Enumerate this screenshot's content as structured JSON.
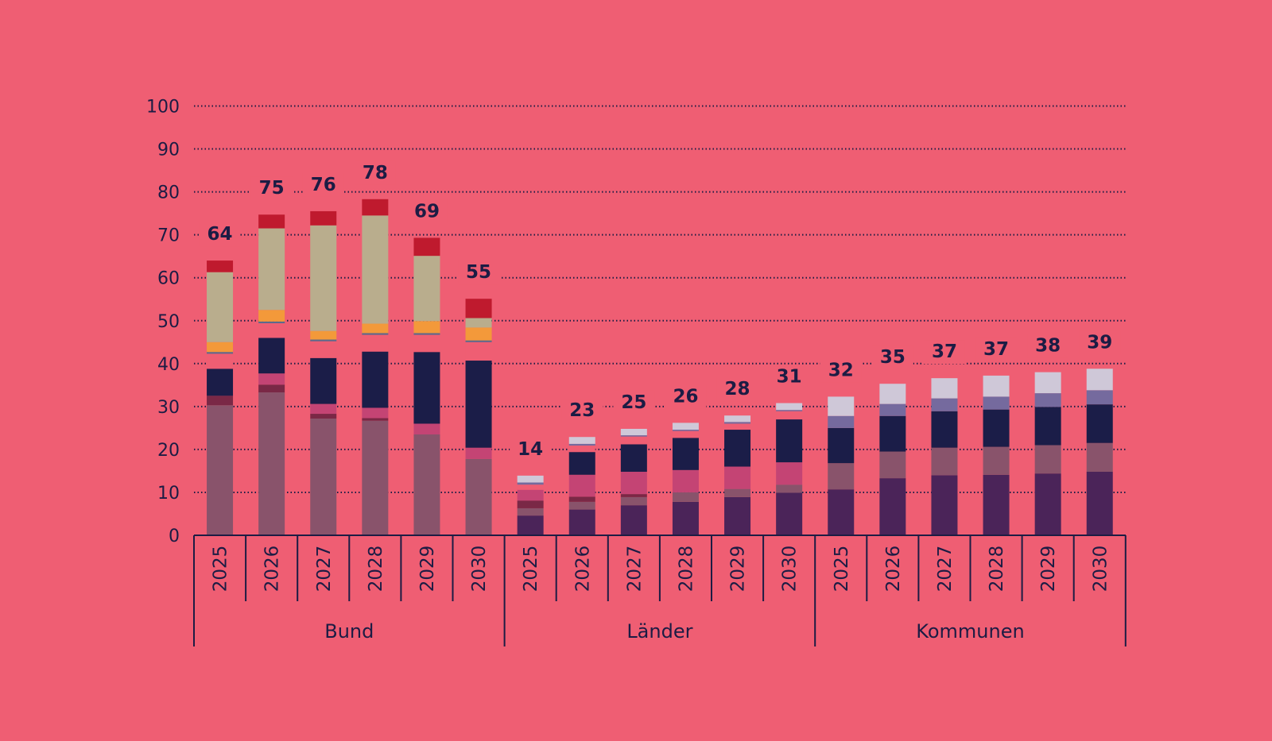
{
  "colors": {
    "background": "#ef5e73",
    "axis": "#1c1c44",
    "grid": "#1c1c44"
  },
  "chart_data": {
    "type": "bar",
    "stacked": true,
    "ylim": [
      0,
      100
    ],
    "yticks": [
      0,
      10,
      20,
      30,
      40,
      50,
      60,
      70,
      80,
      90,
      100
    ],
    "grid": "dotted horizontal",
    "legend": "none",
    "groups": [
      {
        "label": "Bund",
        "bars": [
          {
            "year": "2025",
            "total": "64",
            "segments": [
              {
                "value": 30.3,
                "color": "#89536b"
              },
              {
                "value": 2.2,
                "color": "#7a2846"
              },
              {
                "value": 6.3,
                "color": "#1b1d48"
              },
              {
                "value": 3.5,
                "color": "#ef5e73"
              },
              {
                "value": 0.4,
                "color": "#5b6a8c"
              },
              {
                "value": 2.3,
                "color": "#f3993a"
              },
              {
                "value": 16.3,
                "color": "#b9ad8d"
              },
              {
                "value": 2.7,
                "color": "#bf1a2e"
              }
            ]
          },
          {
            "year": "2026",
            "total": "75",
            "segments": [
              {
                "value": 33.3,
                "color": "#89536b"
              },
              {
                "value": 1.8,
                "color": "#7a2846"
              },
              {
                "value": 2.6,
                "color": "#c44474"
              },
              {
                "value": 8.3,
                "color": "#1b1d48"
              },
              {
                "value": 3.4,
                "color": "#ef5e73"
              },
              {
                "value": 0.4,
                "color": "#5b6a8c"
              },
              {
                "value": 2.7,
                "color": "#f3993a"
              },
              {
                "value": 19.0,
                "color": "#b9ad8d"
              },
              {
                "value": 3.2,
                "color": "#bf1a2e"
              }
            ]
          },
          {
            "year": "2027",
            "total": "76",
            "segments": [
              {
                "value": 27.2,
                "color": "#89536b"
              },
              {
                "value": 1.1,
                "color": "#7a2846"
              },
              {
                "value": 2.3,
                "color": "#c44474"
              },
              {
                "value": 10.7,
                "color": "#1b1d48"
              },
              {
                "value": 3.9,
                "color": "#ef5e73"
              },
              {
                "value": 0.4,
                "color": "#5b6a8c"
              },
              {
                "value": 2.0,
                "color": "#f3993a"
              },
              {
                "value": 24.6,
                "color": "#b9ad8d"
              },
              {
                "value": 3.3,
                "color": "#bf1a2e"
              }
            ]
          },
          {
            "year": "2028",
            "total": "78",
            "segments": [
              {
                "value": 26.7,
                "color": "#89536b"
              },
              {
                "value": 0.6,
                "color": "#7a2846"
              },
              {
                "value": 2.4,
                "color": "#c44474"
              },
              {
                "value": 13.1,
                "color": "#1b1d48"
              },
              {
                "value": 3.9,
                "color": "#ef5e73"
              },
              {
                "value": 0.4,
                "color": "#5b6a8c"
              },
              {
                "value": 2.2,
                "color": "#f3993a"
              },
              {
                "value": 25.2,
                "color": "#b9ad8d"
              },
              {
                "value": 3.8,
                "color": "#bf1a2e"
              }
            ]
          },
          {
            "year": "2029",
            "total": "69",
            "segments": [
              {
                "value": 23.5,
                "color": "#89536b"
              },
              {
                "value": 2.5,
                "color": "#c44474"
              },
              {
                "value": 16.7,
                "color": "#1b1d48"
              },
              {
                "value": 4.0,
                "color": "#ef5e73"
              },
              {
                "value": 0.4,
                "color": "#5b6a8c"
              },
              {
                "value": 2.8,
                "color": "#f3993a"
              },
              {
                "value": 15.2,
                "color": "#b9ad8d"
              },
              {
                "value": 4.2,
                "color": "#bf1a2e"
              }
            ]
          },
          {
            "year": "2030",
            "total": "55",
            "segments": [
              {
                "value": 17.8,
                "color": "#89536b"
              },
              {
                "value": 2.6,
                "color": "#c44474"
              },
              {
                "value": 20.3,
                "color": "#1b1d48"
              },
              {
                "value": 4.3,
                "color": "#ef5e73"
              },
              {
                "value": 0.4,
                "color": "#5b6a8c"
              },
              {
                "value": 3.0,
                "color": "#f3993a"
              },
              {
                "value": 2.2,
                "color": "#b9ad8d"
              },
              {
                "value": 4.5,
                "color": "#bf1a2e"
              }
            ]
          }
        ]
      },
      {
        "label": "Länder",
        "bars": [
          {
            "year": "2025",
            "total": "14",
            "segments": [
              {
                "value": 4.6,
                "color": "#4b2459"
              },
              {
                "value": 1.7,
                "color": "#89536b"
              },
              {
                "value": 1.8,
                "color": "#7a2846"
              },
              {
                "value": 2.5,
                "color": "#c44474"
              },
              {
                "value": 1.2,
                "color": "#ef5e73"
              },
              {
                "value": 0.5,
                "color": "#756a9e"
              },
              {
                "value": 1.6,
                "color": "#cfc8d8"
              }
            ]
          },
          {
            "year": "2026",
            "total": "23",
            "segments": [
              {
                "value": 6.0,
                "color": "#4b2459"
              },
              {
                "value": 1.8,
                "color": "#89536b"
              },
              {
                "value": 1.2,
                "color": "#7a2846"
              },
              {
                "value": 5.1,
                "color": "#c44474"
              },
              {
                "value": 5.3,
                "color": "#1b1d48"
              },
              {
                "value": 1.5,
                "color": "#ef5e73"
              },
              {
                "value": 0.4,
                "color": "#756a9e"
              },
              {
                "value": 1.6,
                "color": "#cfc8d8"
              }
            ]
          },
          {
            "year": "2027",
            "total": "25",
            "segments": [
              {
                "value": 7.0,
                "color": "#4b2459"
              },
              {
                "value": 1.9,
                "color": "#89536b"
              },
              {
                "value": 0.7,
                "color": "#7a2846"
              },
              {
                "value": 5.2,
                "color": "#c44474"
              },
              {
                "value": 6.4,
                "color": "#1b1d48"
              },
              {
                "value": 1.8,
                "color": "#ef5e73"
              },
              {
                "value": 0.3,
                "color": "#756a9e"
              },
              {
                "value": 1.5,
                "color": "#cfc8d8"
              }
            ]
          },
          {
            "year": "2028",
            "total": "26",
            "segments": [
              {
                "value": 7.8,
                "color": "#4b2459"
              },
              {
                "value": 2.2,
                "color": "#89536b"
              },
              {
                "value": 5.2,
                "color": "#c44474"
              },
              {
                "value": 7.5,
                "color": "#1b1d48"
              },
              {
                "value": 1.6,
                "color": "#ef5e73"
              },
              {
                "value": 0.3,
                "color": "#756a9e"
              },
              {
                "value": 1.6,
                "color": "#cfc8d8"
              }
            ]
          },
          {
            "year": "2029",
            "total": "28",
            "segments": [
              {
                "value": 8.9,
                "color": "#4b2459"
              },
              {
                "value": 1.9,
                "color": "#89536b"
              },
              {
                "value": 5.2,
                "color": "#c44474"
              },
              {
                "value": 8.6,
                "color": "#1b1d48"
              },
              {
                "value": 1.4,
                "color": "#ef5e73"
              },
              {
                "value": 0.4,
                "color": "#756a9e"
              },
              {
                "value": 1.5,
                "color": "#cfc8d8"
              }
            ]
          },
          {
            "year": "2030",
            "total": "31",
            "segments": [
              {
                "value": 9.9,
                "color": "#4b2459"
              },
              {
                "value": 1.9,
                "color": "#89536b"
              },
              {
                "value": 5.2,
                "color": "#c44474"
              },
              {
                "value": 10.0,
                "color": "#1b1d48"
              },
              {
                "value": 1.9,
                "color": "#ef5e73"
              },
              {
                "value": 0.3,
                "color": "#756a9e"
              },
              {
                "value": 1.6,
                "color": "#cfc8d8"
              }
            ]
          }
        ]
      },
      {
        "label": "Kommunen",
        "bars": [
          {
            "year": "2025",
            "total": "32",
            "segments": [
              {
                "value": 10.7,
                "color": "#4b2459"
              },
              {
                "value": 6.1,
                "color": "#89536b"
              },
              {
                "value": 8.2,
                "color": "#1b1d48"
              },
              {
                "value": 2.8,
                "color": "#756a9e"
              },
              {
                "value": 4.5,
                "color": "#cfc8d8"
              }
            ]
          },
          {
            "year": "2026",
            "total": "35",
            "segments": [
              {
                "value": 13.3,
                "color": "#4b2459"
              },
              {
                "value": 6.2,
                "color": "#89536b"
              },
              {
                "value": 8.3,
                "color": "#1b1d48"
              },
              {
                "value": 2.8,
                "color": "#756a9e"
              },
              {
                "value": 4.7,
                "color": "#cfc8d8"
              }
            ]
          },
          {
            "year": "2027",
            "total": "37",
            "segments": [
              {
                "value": 14.0,
                "color": "#4b2459"
              },
              {
                "value": 6.4,
                "color": "#89536b"
              },
              {
                "value": 8.5,
                "color": "#1b1d48"
              },
              {
                "value": 3.0,
                "color": "#756a9e"
              },
              {
                "value": 4.7,
                "color": "#cfc8d8"
              }
            ]
          },
          {
            "year": "2028",
            "total": "37",
            "segments": [
              {
                "value": 14.1,
                "color": "#4b2459"
              },
              {
                "value": 6.5,
                "color": "#89536b"
              },
              {
                "value": 8.7,
                "color": "#1b1d48"
              },
              {
                "value": 3.0,
                "color": "#756a9e"
              },
              {
                "value": 4.9,
                "color": "#cfc8d8"
              }
            ]
          },
          {
            "year": "2029",
            "total": "38",
            "segments": [
              {
                "value": 14.4,
                "color": "#4b2459"
              },
              {
                "value": 6.6,
                "color": "#89536b"
              },
              {
                "value": 8.9,
                "color": "#1b1d48"
              },
              {
                "value": 3.2,
                "color": "#756a9e"
              },
              {
                "value": 4.9,
                "color": "#cfc8d8"
              }
            ]
          },
          {
            "year": "2030",
            "total": "39",
            "segments": [
              {
                "value": 14.8,
                "color": "#4b2459"
              },
              {
                "value": 6.7,
                "color": "#89536b"
              },
              {
                "value": 9.0,
                "color": "#1b1d48"
              },
              {
                "value": 3.3,
                "color": "#756a9e"
              },
              {
                "value": 5.0,
                "color": "#cfc8d8"
              }
            ]
          }
        ]
      }
    ]
  }
}
